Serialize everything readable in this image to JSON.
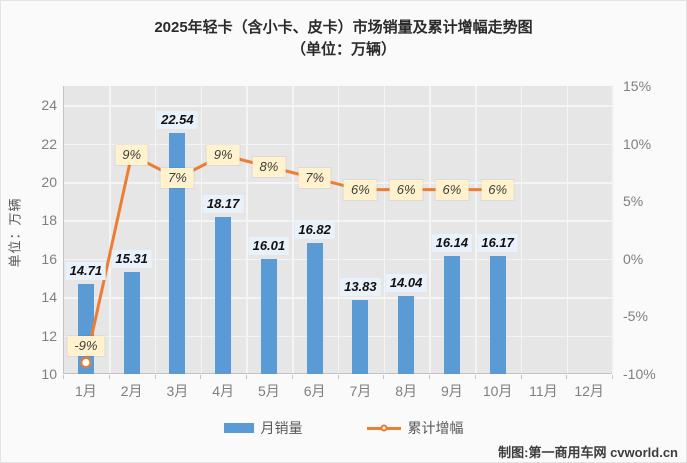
{
  "title": {
    "line1": "2025年轻卡（含小卡、皮卡）市场销量及累计增幅走势图",
    "line2": "（单位：万辆）"
  },
  "chart_data": {
    "type": "combo",
    "title": "2025年轻卡（含小卡、皮卡）市场销量及累计增幅走势图",
    "subtitle": "（单位：万辆）",
    "categories": [
      "1月",
      "2月",
      "3月",
      "4月",
      "5月",
      "6月",
      "7月",
      "8月",
      "9月",
      "10月",
      "11月",
      "12月"
    ],
    "series": [
      {
        "name": "月销量",
        "type": "bar",
        "axis": "left",
        "values": [
          14.71,
          15.31,
          22.54,
          18.17,
          16.01,
          16.82,
          13.83,
          14.04,
          16.14,
          16.17,
          null,
          null
        ]
      },
      {
        "name": "累计增幅",
        "type": "line",
        "axis": "right",
        "values": [
          -9,
          9,
          7,
          9,
          8,
          7,
          6,
          6,
          6,
          6,
          null,
          null
        ],
        "point_labels": [
          "-9%",
          "9%",
          "7%",
          "9%",
          "8%",
          "7%",
          "6%",
          "6%",
          "6%",
          "6%",
          null,
          null
        ]
      }
    ],
    "axis_left": {
      "label": "单位：万辆",
      "min": 10,
      "max": 25,
      "ticks": [
        10,
        12,
        14,
        16,
        18,
        20,
        22,
        24
      ]
    },
    "axis_right": {
      "min": -10,
      "max": 15,
      "ticks": [
        15,
        10,
        5,
        0,
        -5,
        -10
      ],
      "format": "percent"
    },
    "grid": true,
    "legend_position": "bottom"
  },
  "legend": {
    "items": [
      {
        "label": "月销量",
        "swatch": "bar"
      },
      {
        "label": "累计增幅",
        "swatch": "line-marker"
      }
    ]
  },
  "footer": {
    "credit": "制图:第一商用车网 cvworld.cn"
  },
  "colors": {
    "bar": "#5b9bd5",
    "line": "#ed7d31",
    "marker_fill": "#ffffff",
    "plot_bg": "#e6e6e6",
    "grid": "#f4f4f4",
    "pct_label_bg": "#fff2cc",
    "value_label_bg": "#e9f1fa",
    "axis_text": "#7f7f7f"
  }
}
